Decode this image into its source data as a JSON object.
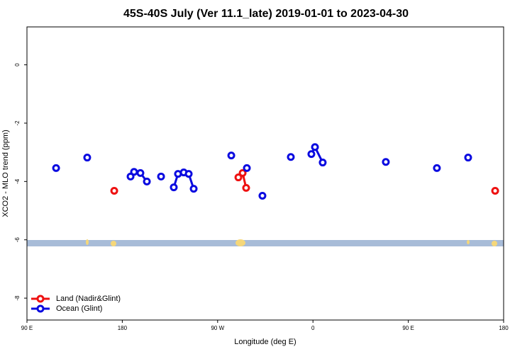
{
  "chart_data": {
    "type": "line",
    "title": "45S-40S July (Ver 11.1_late)   2019-01-01 to 2023-04-30",
    "x_label": "Longitude (deg E)",
    "y_label": "XCO2 - MLO trend (ppm)",
    "xlim": [
      90,
      540
    ],
    "xticks": [
      {
        "value": 90,
        "label": "90 E"
      },
      {
        "value": 180,
        "label": "180"
      },
      {
        "value": 270,
        "label": "90 W"
      },
      {
        "value": 360,
        "label": "0"
      },
      {
        "value": 450,
        "label": "90 E"
      },
      {
        "value": 540,
        "label": "180"
      }
    ],
    "ylim": [
      -8.75,
      1.3
    ],
    "yticks": [
      0,
      -2,
      -4,
      -6,
      -8
    ],
    "legend": "bottom-left",
    "series": [
      {
        "name": "Land (Nadir&Glint)",
        "color": "#ee1111",
        "x": [
          172.4,
          null,
          289.6,
          293.6,
          296.9,
          null,
          532
        ],
        "values": [
          -4.32,
          null,
          -3.86,
          -3.71,
          -4.22,
          null,
          -4.32
        ]
      },
      {
        "name": "Ocean (Glint)",
        "color": "#0a0ae0",
        "x": [
          117.5,
          null,
          146.9,
          null,
          187.8,
          191.1,
          197.1,
          203.2,
          null,
          216.6,
          null,
          228.6,
          232.6,
          238,
          242.7,
          247.4,
          null,
          282.9,
          null,
          297.6,
          null,
          312.3,
          null,
          339.1,
          null,
          358.5,
          361.9,
          369.2,
          null,
          428.8,
          null,
          477,
          null,
          506.5
        ],
        "values": [
          -3.54,
          null,
          -3.18,
          null,
          -3.83,
          -3.67,
          -3.71,
          -4.0,
          null,
          -3.83,
          null,
          -4.2,
          -3.74,
          -3.69,
          -3.74,
          -4.25,
          null,
          -3.11,
          null,
          -3.54,
          null,
          -4.49,
          null,
          -3.16,
          null,
          -3.06,
          -2.82,
          -3.35,
          null,
          -3.33,
          null,
          -3.54,
          null,
          -3.18
        ]
      }
    ]
  }
}
